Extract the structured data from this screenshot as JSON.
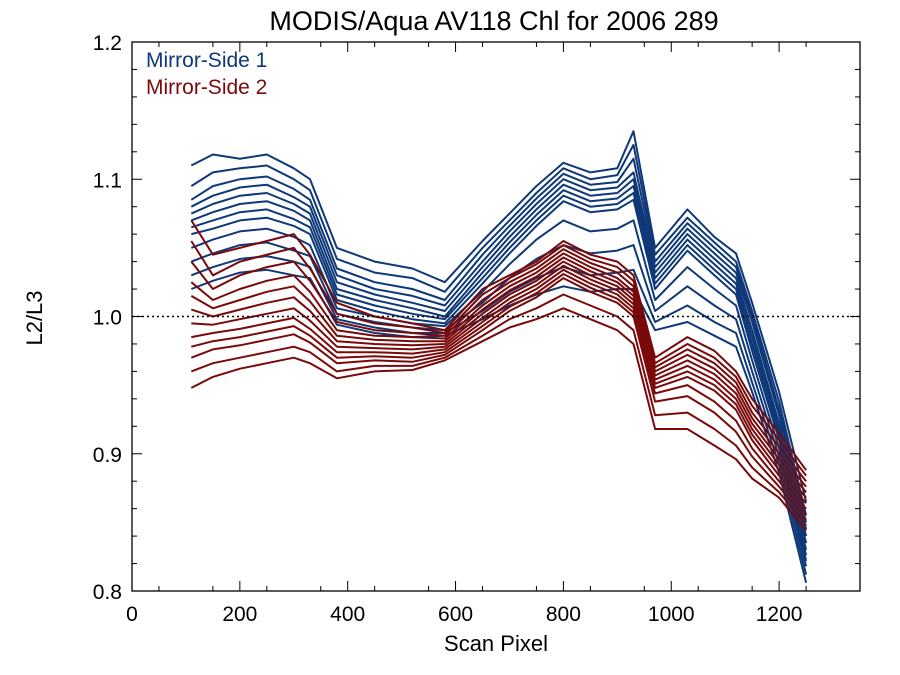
{
  "chart_data": {
    "type": "line",
    "title": "MODIS/Aqua AV118 Chl for 2006 289",
    "xlabel": "Scan Pixel",
    "ylabel": "L2/L3",
    "xlim": [
      0,
      1350
    ],
    "ylim": [
      0.8,
      1.2
    ],
    "x_ticks": [
      0,
      200,
      400,
      600,
      800,
      1000,
      1200
    ],
    "x_tick_labels": [
      "0",
      "200",
      "400",
      "600",
      "800",
      "1000",
      "1200"
    ],
    "y_ticks": [
      0.8,
      0.9,
      1.0,
      1.1,
      1.2
    ],
    "y_tick_labels": [
      "0.8",
      "0.9",
      "1.0",
      "1.1",
      "1.2"
    ],
    "reference_line": 1.0,
    "grid": false,
    "legend_position": "top-left",
    "series_groups": [
      {
        "name": "Mirror-Side 1",
        "color": "#0e3878",
        "x": [
          110,
          150,
          200,
          250,
          300,
          330,
          380,
          450,
          520,
          580,
          650,
          700,
          750,
          800,
          850,
          900,
          930,
          970,
          1030,
          1080,
          1120,
          1150,
          1200,
          1250
        ],
        "lines": [
          [
            1.11,
            1.118,
            1.115,
            1.118,
            1.108,
            1.1,
            1.05,
            1.04,
            1.035,
            1.025,
            1.055,
            1.075,
            1.095,
            1.112,
            1.105,
            1.108,
            1.135,
            1.05,
            1.078,
            1.058,
            1.046,
            1.01,
            0.945,
            0.865
          ],
          [
            1.095,
            1.105,
            1.108,
            1.11,
            1.1,
            1.092,
            1.042,
            1.032,
            1.028,
            1.018,
            1.05,
            1.07,
            1.09,
            1.108,
            1.1,
            1.103,
            1.125,
            1.045,
            1.072,
            1.054,
            1.04,
            1.004,
            0.938,
            0.855
          ],
          [
            1.085,
            1.095,
            1.1,
            1.102,
            1.093,
            1.085,
            1.035,
            1.025,
            1.02,
            1.012,
            1.045,
            1.066,
            1.086,
            1.104,
            1.096,
            1.098,
            1.115,
            1.04,
            1.068,
            1.05,
            1.036,
            1.0,
            0.932,
            0.85
          ],
          [
            1.08,
            1.088,
            1.094,
            1.096,
            1.087,
            1.08,
            1.03,
            1.02,
            1.015,
            1.008,
            1.04,
            1.062,
            1.082,
            1.1,
            1.092,
            1.094,
            1.105,
            1.036,
            1.064,
            1.046,
            1.032,
            0.996,
            0.928,
            0.845
          ],
          [
            1.075,
            1.082,
            1.088,
            1.09,
            1.082,
            1.075,
            1.025,
            1.016,
            1.01,
            1.004,
            1.036,
            1.058,
            1.078,
            1.096,
            1.088,
            1.09,
            1.1,
            1.032,
            1.06,
            1.042,
            1.028,
            0.99,
            0.922,
            0.84
          ],
          [
            1.07,
            1.076,
            1.082,
            1.084,
            1.077,
            1.07,
            1.02,
            1.012,
            1.006,
            1.0,
            1.032,
            1.054,
            1.074,
            1.092,
            1.084,
            1.086,
            1.095,
            1.028,
            1.056,
            1.038,
            1.024,
            0.985,
            0.918,
            0.835
          ],
          [
            1.065,
            1.07,
            1.076,
            1.078,
            1.071,
            1.065,
            1.016,
            1.008,
            1.002,
            0.998,
            1.028,
            1.05,
            1.07,
            1.088,
            1.08,
            1.082,
            1.09,
            1.024,
            1.052,
            1.034,
            1.02,
            0.98,
            0.914,
            0.83
          ],
          [
            1.06,
            1.064,
            1.07,
            1.072,
            1.066,
            1.06,
            1.012,
            1.004,
            0.998,
            0.995,
            1.024,
            1.046,
            1.066,
            1.084,
            1.076,
            1.078,
            1.085,
            1.02,
            1.048,
            1.03,
            1.016,
            0.975,
            0.91,
            0.826
          ],
          [
            1.05,
            1.056,
            1.062,
            1.064,
            1.058,
            1.052,
            1.006,
            1.0,
            0.995,
            0.993,
            1.018,
            1.038,
            1.056,
            1.07,
            1.062,
            1.064,
            1.07,
            1.012,
            1.036,
            1.02,
            1.008,
            0.968,
            0.904,
            0.822
          ],
          [
            1.04,
            1.046,
            1.052,
            1.054,
            1.048,
            1.044,
            1.002,
            0.996,
            0.992,
            0.99,
            1.01,
            1.028,
            1.042,
            1.052,
            1.046,
            1.048,
            1.052,
            1.004,
            1.022,
            1.008,
            0.998,
            0.96,
            0.898,
            0.818
          ],
          [
            1.03,
            1.036,
            1.042,
            1.044,
            1.04,
            1.036,
            0.998,
            0.992,
            0.988,
            0.988,
            1.004,
            1.018,
            1.028,
            1.036,
            1.03,
            1.032,
            1.034,
            0.996,
            1.008,
            0.996,
            0.988,
            0.952,
            0.892,
            0.812
          ],
          [
            1.02,
            1.026,
            1.032,
            1.034,
            1.03,
            1.028,
            0.994,
            0.988,
            0.985,
            0.986,
            0.998,
            1.008,
            1.016,
            1.022,
            1.018,
            1.02,
            1.02,
            0.99,
            0.996,
            0.986,
            0.978,
            0.945,
            0.886,
            0.806
          ]
        ]
      },
      {
        "name": "Mirror-Side 2",
        "color": "#7a0a0a",
        "x": [
          110,
          150,
          200,
          250,
          300,
          330,
          380,
          450,
          520,
          580,
          650,
          700,
          750,
          800,
          850,
          900,
          930,
          970,
          1030,
          1080,
          1120,
          1150,
          1200,
          1250
        ],
        "lines": [
          [
            1.07,
            1.045,
            1.05,
            1.055,
            1.06,
            1.045,
            1.01,
            1.0,
            0.995,
            0.99,
            1.02,
            1.03,
            1.04,
            1.055,
            1.045,
            1.04,
            1.03,
            0.97,
            0.985,
            0.975,
            0.96,
            0.94,
            0.915,
            0.888
          ],
          [
            1.055,
            1.03,
            1.04,
            1.045,
            1.05,
            1.035,
            1.002,
            0.995,
            0.992,
            0.988,
            1.016,
            1.028,
            1.038,
            1.052,
            1.042,
            1.036,
            1.026,
            0.966,
            0.98,
            0.97,
            0.956,
            0.935,
            0.91,
            0.884
          ],
          [
            1.04,
            1.02,
            1.03,
            1.036,
            1.04,
            1.026,
            0.996,
            0.99,
            0.988,
            0.986,
            1.012,
            1.025,
            1.035,
            1.049,
            1.039,
            1.032,
            1.022,
            0.963,
            0.976,
            0.966,
            0.952,
            0.93,
            0.905,
            0.88
          ],
          [
            1.025,
            1.012,
            1.02,
            1.026,
            1.03,
            1.018,
            0.99,
            0.986,
            0.985,
            0.984,
            1.008,
            1.022,
            1.032,
            1.046,
            1.036,
            1.028,
            1.018,
            0.96,
            0.972,
            0.962,
            0.948,
            0.926,
            0.9,
            0.876
          ],
          [
            1.015,
            1.006,
            1.012,
            1.018,
            1.022,
            1.011,
            0.986,
            0.983,
            0.982,
            0.982,
            1.005,
            1.019,
            1.029,
            1.043,
            1.033,
            1.025,
            1.015,
            0.957,
            0.968,
            0.958,
            0.944,
            0.922,
            0.896,
            0.872
          ],
          [
            1.005,
            1.0,
            1.005,
            1.01,
            1.014,
            1.004,
            0.982,
            0.98,
            0.979,
            0.98,
            1.002,
            1.016,
            1.026,
            1.04,
            1.03,
            1.022,
            1.012,
            0.954,
            0.964,
            0.954,
            0.94,
            0.918,
            0.892,
            0.868
          ],
          [
            0.995,
            0.994,
            0.998,
            1.002,
            1.006,
            0.997,
            0.978,
            0.977,
            0.976,
            0.978,
            0.999,
            1.013,
            1.023,
            1.037,
            1.027,
            1.019,
            1.009,
            0.951,
            0.96,
            0.95,
            0.936,
            0.914,
            0.888,
            0.864
          ],
          [
            0.985,
            0.988,
            0.991,
            0.995,
            0.999,
            0.991,
            0.974,
            0.974,
            0.973,
            0.976,
            0.996,
            1.01,
            1.02,
            1.034,
            1.024,
            1.016,
            1.006,
            0.948,
            0.956,
            0.946,
            0.932,
            0.91,
            0.884,
            0.86
          ],
          [
            0.978,
            0.982,
            0.985,
            0.989,
            0.993,
            0.986,
            0.97,
            0.971,
            0.97,
            0.974,
            0.993,
            1.007,
            1.017,
            1.031,
            1.021,
            1.013,
            1.003,
            0.944,
            0.95,
            0.938,
            0.924,
            0.904,
            0.88,
            0.856
          ],
          [
            0.97,
            0.976,
            0.979,
            0.983,
            0.987,
            0.981,
            0.966,
            0.968,
            0.967,
            0.972,
            0.99,
            1.004,
            1.014,
            1.028,
            1.018,
            1.01,
            1.0,
            0.938,
            0.942,
            0.93,
            0.916,
            0.898,
            0.876,
            0.852
          ],
          [
            0.96,
            0.966,
            0.97,
            0.974,
            0.978,
            0.974,
            0.96,
            0.964,
            0.964,
            0.97,
            0.986,
            0.998,
            1.006,
            1.016,
            1.008,
            1.0,
            0.99,
            0.928,
            0.93,
            0.918,
            0.906,
            0.89,
            0.872,
            0.848
          ],
          [
            0.948,
            0.956,
            0.962,
            0.966,
            0.97,
            0.966,
            0.955,
            0.96,
            0.961,
            0.968,
            0.982,
            0.992,
            0.998,
            1.006,
            0.998,
            0.99,
            0.98,
            0.918,
            0.918,
            0.906,
            0.896,
            0.882,
            0.868,
            0.844
          ]
        ]
      }
    ]
  }
}
